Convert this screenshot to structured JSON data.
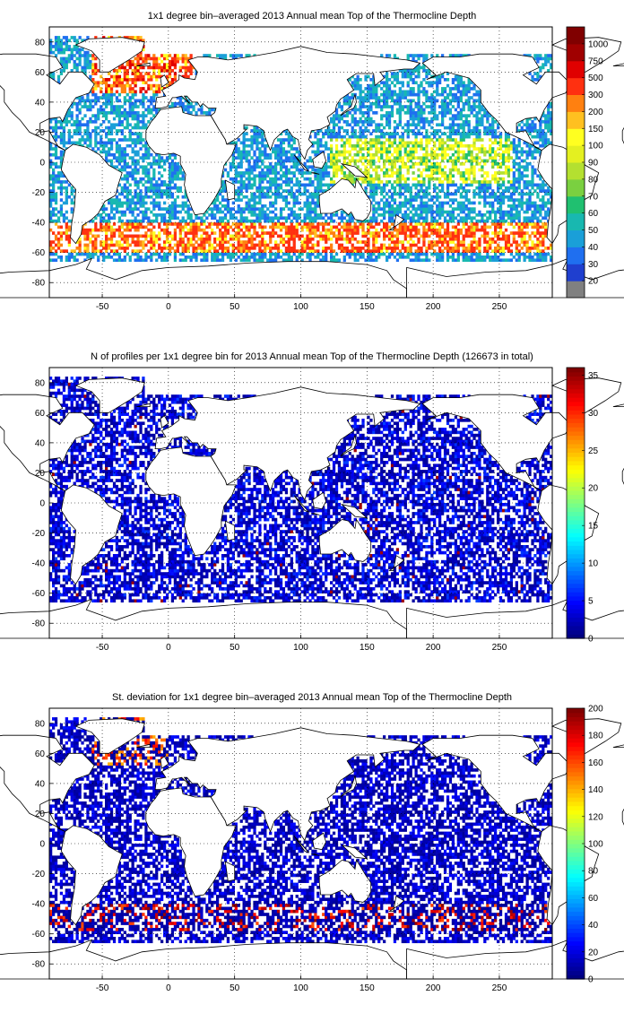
{
  "panels": [
    {
      "title": "1x1 degree bin–averaged 2013 Annual mean Top of the Thermocline Depth",
      "colorbar": {
        "type": "discrete",
        "labels": [
          "20",
          "30",
          "40",
          "50",
          "60",
          "70",
          "80",
          "90",
          "100",
          "150",
          "200",
          "300",
          "500",
          "750",
          "1000"
        ],
        "colors": [
          "#808080",
          "#1f3fcf",
          "#1f6ff0",
          "#1a9fd8",
          "#18b8b0",
          "#20c070",
          "#7ad040",
          "#b4e030",
          "#e4f020",
          "#ffff20",
          "#ffc020",
          "#ff8010",
          "#ff3010",
          "#e00000",
          "#a00000",
          "#800000"
        ]
      },
      "field": "thermocline_depth"
    },
    {
      "title": "N of profiles per 1x1 degree bin for 2013 Annual mean Top of the Thermocline Depth  (126673 in total)",
      "colorbar": {
        "type": "continuous",
        "min": 0,
        "max": 36,
        "labels": [
          "0",
          "5",
          "10",
          "15",
          "20",
          "25",
          "30",
          "35"
        ],
        "label_values": [
          0,
          5,
          10,
          15,
          20,
          25,
          30,
          35
        ]
      },
      "field": "profile_count"
    },
    {
      "title": "St. deviation for 1x1 degree bin–averaged 2013 Annual mean Top of the Thermocline Depth",
      "colorbar": {
        "type": "continuous",
        "min": 0,
        "max": 200,
        "labels": [
          "0",
          "20",
          "40",
          "60",
          "80",
          "100",
          "120",
          "140",
          "160",
          "180",
          "200"
        ],
        "label_values": [
          0,
          20,
          40,
          60,
          80,
          100,
          120,
          140,
          160,
          180,
          200
        ]
      },
      "field": "std_dev"
    }
  ],
  "axes": {
    "x_ticks": [
      "-50",
      "0",
      "50",
      "100",
      "150",
      "200",
      "250"
    ],
    "x_values": [
      -50,
      0,
      50,
      100,
      150,
      200,
      250
    ],
    "y_ticks": [
      "80",
      "60",
      "40",
      "20",
      "0",
      "-20",
      "-40",
      "-60",
      "-80"
    ],
    "y_values": [
      80,
      60,
      40,
      20,
      0,
      -20,
      -40,
      -60,
      -80
    ],
    "xlim": [
      -90,
      290
    ],
    "ylim": [
      -90,
      90
    ],
    "grid": "dotted"
  }
}
